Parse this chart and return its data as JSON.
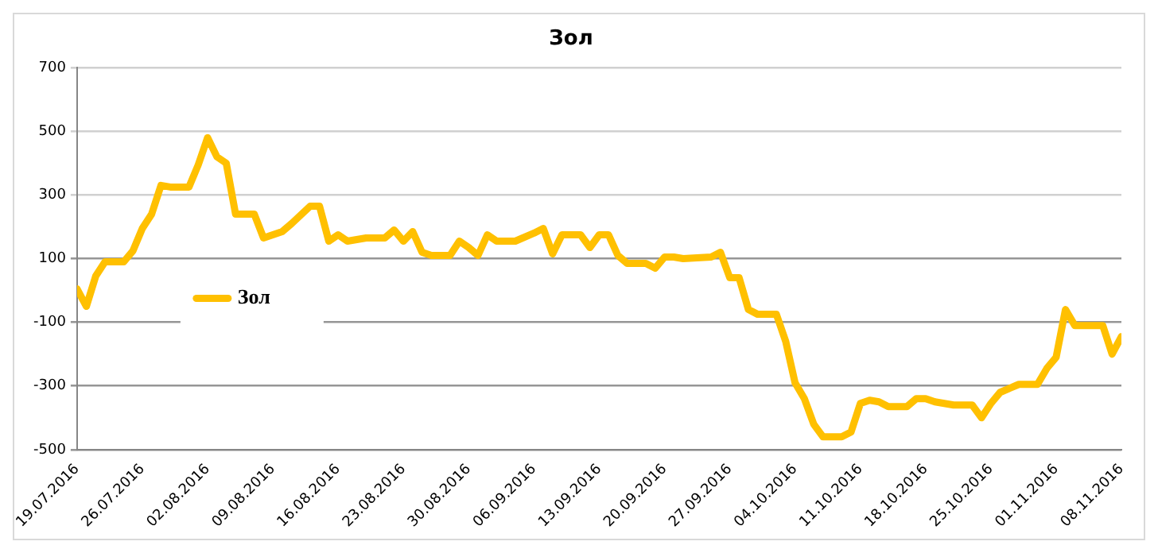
{
  "chart_data": {
    "type": "line",
    "title": "Зол",
    "x": [
      "2016-07-19",
      "2016-07-20",
      "2016-07-21",
      "2016-07-22",
      "2016-07-24",
      "2016-07-25",
      "2016-07-26",
      "2016-07-27",
      "2016-07-28",
      "2016-07-29",
      "2016-07-31",
      "2016-08-01",
      "2016-08-02",
      "2016-08-03",
      "2016-08-04",
      "2016-08-05",
      "2016-08-07",
      "2016-08-08",
      "2016-08-10",
      "2016-08-11",
      "2016-08-13",
      "2016-08-14",
      "2016-08-15",
      "2016-08-16",
      "2016-08-17",
      "2016-08-19",
      "2016-08-21",
      "2016-08-22",
      "2016-08-23",
      "2016-08-24",
      "2016-08-25",
      "2016-08-26",
      "2016-08-28",
      "2016-08-29",
      "2016-08-30",
      "2016-08-31",
      "2016-09-01",
      "2016-09-02",
      "2016-09-04",
      "2016-09-06",
      "2016-09-07",
      "2016-09-08",
      "2016-09-09",
      "2016-09-11",
      "2016-09-12",
      "2016-09-13",
      "2016-09-14",
      "2016-09-15",
      "2016-09-16",
      "2016-09-18",
      "2016-09-19",
      "2016-09-20",
      "2016-09-21",
      "2016-09-22",
      "2016-09-25",
      "2016-09-26",
      "2016-09-27",
      "2016-09-28",
      "2016-09-29",
      "2016-09-30",
      "2016-10-02",
      "2016-10-03",
      "2016-10-04",
      "2016-10-05",
      "2016-10-06",
      "2016-10-07",
      "2016-10-09",
      "2016-10-10",
      "2016-10-11",
      "2016-10-12",
      "2016-10-13",
      "2016-10-14",
      "2016-10-16",
      "2016-10-17",
      "2016-10-18",
      "2016-10-19",
      "2016-10-21",
      "2016-10-23",
      "2016-10-24",
      "2016-10-25",
      "2016-10-26",
      "2016-10-28",
      "2016-10-30",
      "2016-10-31",
      "2016-11-01",
      "2016-11-02",
      "2016-11-03",
      "2016-11-06",
      "2016-11-07",
      "2016-11-08"
    ],
    "series": [
      {
        "name": "Зол",
        "color": "#ffc000",
        "values": [
          5,
          -50,
          45,
          90,
          90,
          125,
          195,
          240,
          330,
          325,
          325,
          395,
          480,
          420,
          400,
          240,
          240,
          165,
          185,
          210,
          265,
          265,
          155,
          175,
          155,
          165,
          165,
          190,
          155,
          185,
          120,
          110,
          110,
          155,
          135,
          110,
          175,
          155,
          155,
          180,
          195,
          115,
          175,
          175,
          135,
          175,
          175,
          110,
          85,
          85,
          70,
          105,
          105,
          100,
          105,
          120,
          40,
          40,
          -60,
          -75,
          -75,
          -160,
          -290,
          -340,
          -420,
          -460,
          -460,
          -445,
          -355,
          -345,
          -350,
          -365,
          -365,
          -340,
          -340,
          -350,
          -360,
          -360,
          -400,
          -355,
          -320,
          -295,
          -295,
          -245,
          -210,
          -60,
          -110,
          -110,
          -200,
          -145
        ]
      }
    ],
    "ylim": [
      -500,
      700
    ],
    "yticks": [
      -500,
      -300,
      -100,
      100,
      300,
      500,
      700
    ],
    "xlim": [
      "2016-07-19",
      "2016-11-08"
    ],
    "xticks": [
      {
        "value": "2016-07-19",
        "label": "19.07.2016"
      },
      {
        "value": "2016-07-26",
        "label": "26.07.2016"
      },
      {
        "value": "2016-08-02",
        "label": "02.08.2016"
      },
      {
        "value": "2016-08-09",
        "label": "09.08.2016"
      },
      {
        "value": "2016-08-16",
        "label": "16.08.2016"
      },
      {
        "value": "2016-08-23",
        "label": "23.08.2016"
      },
      {
        "value": "2016-08-30",
        "label": "30.08.2016"
      },
      {
        "value": "2016-09-06",
        "label": "06.09.2016"
      },
      {
        "value": "2016-09-13",
        "label": "13.09.2016"
      },
      {
        "value": "2016-09-20",
        "label": "20.09.2016"
      },
      {
        "value": "2016-09-27",
        "label": "27.09.2016"
      },
      {
        "value": "2016-10-04",
        "label": "04.10.2016"
      },
      {
        "value": "2016-10-11",
        "label": "11.10.2016"
      },
      {
        "value": "2016-10-18",
        "label": "18.10.2016"
      },
      {
        "value": "2016-10-25",
        "label": "25.10.2016"
      },
      {
        "value": "2016-11-01",
        "label": "01.11.2016"
      },
      {
        "value": "2016-11-08",
        "label": "08.11.2016"
      }
    ],
    "grid": "y",
    "legend": "left",
    "marker": "none",
    "line_style": "solid"
  }
}
